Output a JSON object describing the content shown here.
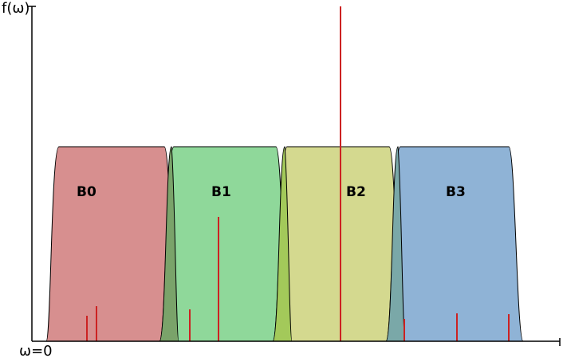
{
  "axes": {
    "y_label": "f(ω)",
    "x_origin_label": "ω=0"
  },
  "bands": [
    {
      "label": "B0",
      "color": "#d78f8f"
    },
    {
      "label": "B1",
      "color": "#8fd89a"
    },
    {
      "label": "B2",
      "color": "#d4d98f"
    },
    {
      "label": "B3",
      "color": "#8fb3d6"
    }
  ],
  "overlap_colors": [
    "#7aa36a",
    "#a3c95a",
    "#7aa8a8"
  ],
  "spike_color": "#cc2222"
}
